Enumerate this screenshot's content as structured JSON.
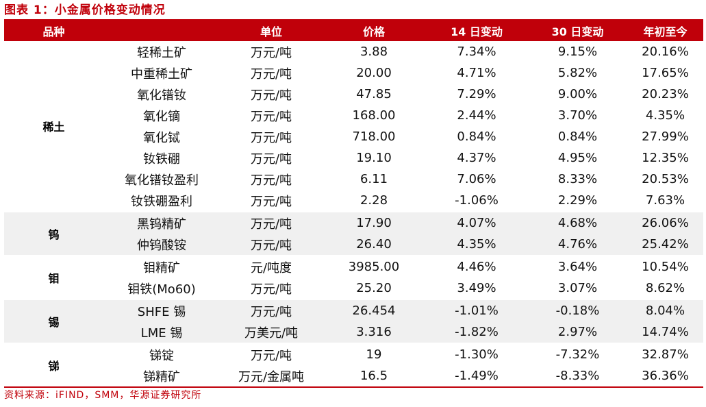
{
  "title": "图表 1：小金属价格变动情况",
  "columns": [
    "品种",
    "单位",
    "价格",
    "14 日变动",
    "30 日变动",
    "年初至今"
  ],
  "groups": [
    {
      "category": "稀土",
      "shaded": false,
      "rows": [
        {
          "item": "轻稀土矿",
          "unit": "万元/吨",
          "price": "3.88",
          "d14": "7.34%",
          "d30": "9.15%",
          "ytd": "20.16%"
        },
        {
          "item": "中重稀土矿",
          "unit": "万元/吨",
          "price": "20.00",
          "d14": "4.71%",
          "d30": "5.82%",
          "ytd": "17.65%"
        },
        {
          "item": "氧化镨钕",
          "unit": "万元/吨",
          "price": "47.85",
          "d14": "7.29%",
          "d30": "9.00%",
          "ytd": "20.23%"
        },
        {
          "item": "氧化镝",
          "unit": "万元/吨",
          "price": "168.00",
          "d14": "2.44%",
          "d30": "3.70%",
          "ytd": "4.35%"
        },
        {
          "item": "氧化铽",
          "unit": "万元/吨",
          "price": "718.00",
          "d14": "0.84%",
          "d30": "0.84%",
          "ytd": "27.99%"
        },
        {
          "item": "钕铁硼",
          "unit": "万元/吨",
          "price": "19.10",
          "d14": "4.37%",
          "d30": "4.95%",
          "ytd": "12.35%"
        },
        {
          "item": "氧化镨钕盈利",
          "unit": "万元/吨",
          "price": "6.11",
          "d14": "7.06%",
          "d30": "8.33%",
          "ytd": "20.53%"
        },
        {
          "item": "钕铁硼盈利",
          "unit": "万元/吨",
          "price": "2.28",
          "d14": "-1.06%",
          "d30": "2.29%",
          "ytd": "7.63%"
        }
      ]
    },
    {
      "category": "钨",
      "shaded": true,
      "rows": [
        {
          "item": "黑钨精矿",
          "unit": "万元/吨",
          "price": "17.90",
          "d14": "4.07%",
          "d30": "4.68%",
          "ytd": "26.06%"
        },
        {
          "item": "仲钨酸铵",
          "unit": "万元/吨",
          "price": "26.40",
          "d14": "4.35%",
          "d30": "4.76%",
          "ytd": "25.42%"
        }
      ]
    },
    {
      "category": "钼",
      "shaded": false,
      "rows": [
        {
          "item": "钼精矿",
          "unit": "元/吨度",
          "price": "3985.00",
          "d14": "4.46%",
          "d30": "3.64%",
          "ytd": "10.54%"
        },
        {
          "item": "钼铁(Mo60)",
          "unit": "万元/吨",
          "price": "25.20",
          "d14": "3.49%",
          "d30": "3.07%",
          "ytd": "8.62%"
        }
      ]
    },
    {
      "category": "锡",
      "shaded": true,
      "rows": [
        {
          "item": "SHFE 锡",
          "unit": "万元/吨",
          "price": "26.454",
          "d14": "-1.01%",
          "d30": "-0.18%",
          "ytd": "8.04%"
        },
        {
          "item": "LME 锡",
          "unit": "万美元/吨",
          "price": "3.316",
          "d14": "-1.82%",
          "d30": "2.97%",
          "ytd": "14.74%"
        }
      ]
    },
    {
      "category": "锑",
      "shaded": false,
      "rows": [
        {
          "item": "锑锭",
          "unit": "万元/吨",
          "price": "19",
          "d14": "-1.30%",
          "d30": "-7.32%",
          "ytd": "32.87%"
        },
        {
          "item": "锑精矿",
          "unit": "万元/金属吨",
          "price": "16.5",
          "d14": "-1.49%",
          "d30": "-8.33%",
          "ytd": "36.36%"
        }
      ]
    }
  ],
  "source": "资料来源：iFIND，SMM，华源证券研究所",
  "colors": {
    "accent": "#c0000a",
    "shade": "#f0f0f0"
  }
}
